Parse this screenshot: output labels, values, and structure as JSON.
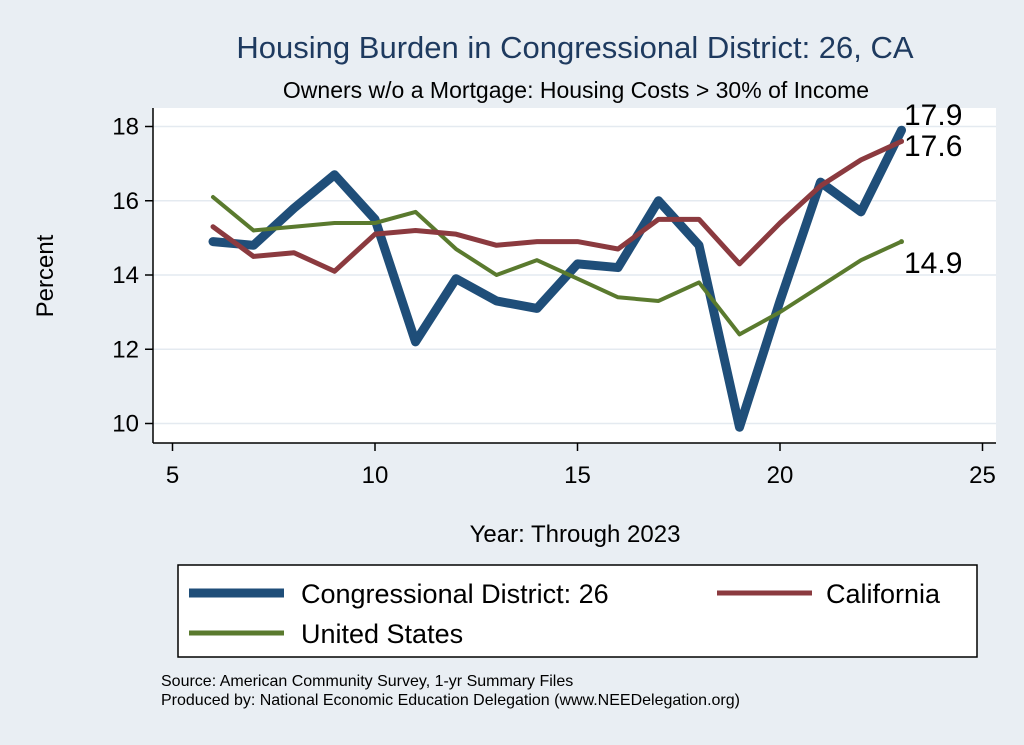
{
  "chart_data": {
    "type": "line",
    "title": "Housing Burden in Congressional District:  26, CA",
    "subtitle": "Owners w/o a Mortgage: Housing Costs > 30% of Income",
    "xlabel": "Year: Through 2023",
    "ylabel": "Percent",
    "xlim": [
      5,
      25
    ],
    "ylim": [
      9.6,
      18.3
    ],
    "x_ticks": [
      5,
      10,
      15,
      20,
      25
    ],
    "y_ticks": [
      10,
      12,
      14,
      16,
      18
    ],
    "grid": true,
    "legend_position": "bottom",
    "series": [
      {
        "name": "Congressional District:  26",
        "color": "#1f4e79",
        "x": [
          6,
          7,
          8,
          9,
          10,
          11,
          12,
          13,
          14,
          15,
          16,
          17,
          18,
          19,
          20,
          21,
          22,
          23
        ],
        "values": [
          14.9,
          14.8,
          15.8,
          16.7,
          15.5,
          12.2,
          13.9,
          13.3,
          13.1,
          14.3,
          14.2,
          16.0,
          14.8,
          9.9,
          13.3,
          16.5,
          15.7,
          17.9
        ],
        "end_label": "17.9"
      },
      {
        "name": "California",
        "color": "#8b3a3f",
        "x": [
          6,
          7,
          8,
          9,
          10,
          11,
          12,
          13,
          14,
          15,
          16,
          17,
          18,
          19,
          20,
          21,
          22,
          23
        ],
        "values": [
          15.3,
          14.5,
          14.6,
          14.1,
          15.1,
          15.2,
          15.1,
          14.8,
          14.9,
          14.9,
          14.7,
          15.5,
          15.5,
          14.3,
          15.4,
          16.4,
          17.1,
          17.6
        ],
        "end_label": "17.6"
      },
      {
        "name": "United States",
        "color": "#5a7a2e",
        "x": [
          6,
          7,
          8,
          9,
          10,
          11,
          12,
          13,
          14,
          15,
          16,
          17,
          18,
          19,
          20,
          21,
          22,
          23
        ],
        "values": [
          16.1,
          15.2,
          15.3,
          15.4,
          15.4,
          15.7,
          14.7,
          14.0,
          14.4,
          13.9,
          13.4,
          13.3,
          13.8,
          12.4,
          13.0,
          13.7,
          14.4,
          14.9
        ],
        "end_label": "14.9"
      }
    ]
  },
  "notes": {
    "source": "Source: American Community Survey, 1-yr Summary Files",
    "produced_by": "Produced by: National Economic Education Delegation (www.NEEDelegation.org)"
  }
}
